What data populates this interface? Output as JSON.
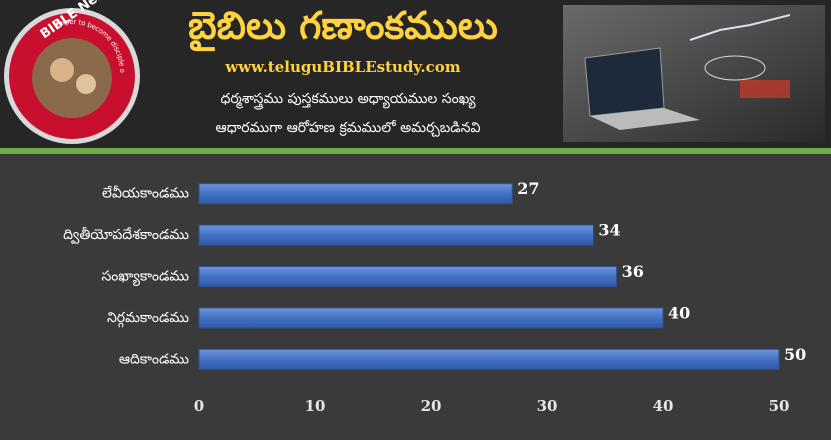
{
  "header": {
    "logo_title": "BIBLE Nestam",
    "logo_motto": "Helper to become disciple of JESUS CHRIST",
    "title": "బైబిలు గణాంకములు",
    "website": "www.teluguBIBLEstudy.com",
    "subtitle_lines": [
      "ధర్మశాస్త్రము పుస్తకములు అధ్యాయముల సంఖ్య",
      "ఆధారముగా ఆరోహణ క్రమములో అమర్చబడినవి"
    ]
  },
  "chart_data": {
    "type": "bar",
    "orientation": "horizontal",
    "categories": [
      "లేవీయకాండము",
      "ద్వితీయోపదేశకాండము",
      "సంఖ్యాకాండము",
      "నిర్గమకాండము",
      "ఆదికాండము"
    ],
    "values": [
      27,
      34,
      36,
      40,
      50
    ],
    "color": "#4472c4",
    "xlim": [
      0,
      50
    ],
    "xticks": [
      0,
      10,
      20,
      30,
      40,
      50
    ]
  }
}
